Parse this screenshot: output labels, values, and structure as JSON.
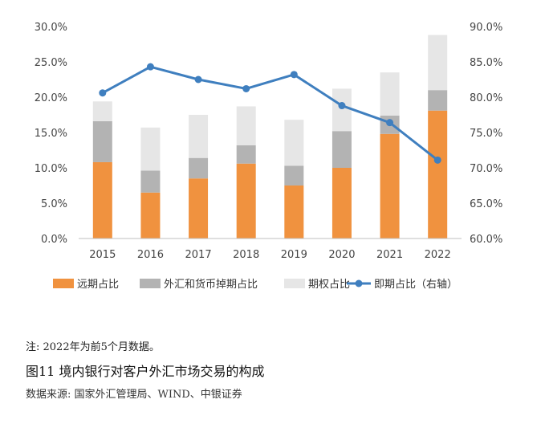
{
  "note": "注: 2022年为前5个月数据。",
  "caption": "图11  境内银行对客户外汇市场交易的构成",
  "source": "数据来源: 国家外汇管理局、WIND、中银证券",
  "colors": {
    "forward": "#f0923f",
    "fx_swap": "#b3b3b3",
    "option": "#e6e6e6",
    "spot": "#3f7fbf",
    "axis": "#bfbfbf"
  },
  "chart_data": {
    "type": "bar",
    "stacked": true,
    "categories": [
      "2015",
      "2016",
      "2017",
      "2018",
      "2019",
      "2020",
      "2021",
      "2022"
    ],
    "series": [
      {
        "name": "远期占比",
        "axis": "left",
        "color": "#f0923f",
        "values": [
          10.8,
          6.5,
          8.5,
          10.6,
          7.5,
          10.0,
          14.8,
          18.1
        ]
      },
      {
        "name": "外汇和货币掉期占比",
        "axis": "left",
        "color": "#b3b3b3",
        "values": [
          5.8,
          3.1,
          2.9,
          2.6,
          2.8,
          5.2,
          2.6,
          2.9
        ]
      },
      {
        "name": "期权占比",
        "axis": "left",
        "color": "#e6e6e6",
        "values": [
          2.8,
          6.1,
          6.1,
          5.5,
          6.5,
          6.0,
          6.1,
          7.8
        ]
      },
      {
        "name": "即期占比（右轴）",
        "axis": "right",
        "type": "line",
        "color": "#3f7fbf",
        "values": [
          80.6,
          84.3,
          82.5,
          81.2,
          83.2,
          78.8,
          76.4,
          71.1
        ]
      }
    ],
    "y_left": {
      "ylim": [
        0,
        30
      ],
      "ticks": [
        "0.0%",
        "5.0%",
        "10.0%",
        "15.0%",
        "20.0%",
        "25.0%",
        "30.0%"
      ]
    },
    "y_right": {
      "ylim": [
        60,
        90
      ],
      "ticks": [
        "60.0%",
        "65.0%",
        "70.0%",
        "75.0%",
        "80.0%",
        "85.0%",
        "90.0%"
      ]
    },
    "grid": false,
    "legend_position": "bottom"
  }
}
